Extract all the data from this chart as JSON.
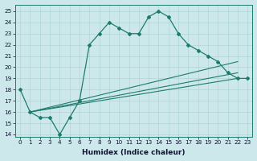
{
  "xlabel": "Humidex (Indice chaleur)",
  "bg_color": "#cce8ea",
  "line_color": "#1e7b6e",
  "grid_color": "#aed4d6",
  "xlim": [
    -0.5,
    23.5
  ],
  "ylim": [
    13.8,
    25.6
  ],
  "yticks": [
    14,
    15,
    16,
    17,
    18,
    19,
    20,
    21,
    22,
    23,
    24,
    25
  ],
  "xticks": [
    0,
    1,
    2,
    3,
    4,
    5,
    6,
    7,
    8,
    9,
    10,
    11,
    12,
    13,
    14,
    15,
    16,
    17,
    18,
    19,
    20,
    21,
    22,
    23
  ],
  "main_series_x": [
    0,
    1,
    2,
    3,
    4,
    5,
    6,
    7,
    8,
    9,
    10,
    11,
    12,
    13,
    14,
    15,
    16,
    17,
    18,
    19,
    20,
    21,
    22,
    23
  ],
  "main_series_y": [
    18,
    16,
    15.5,
    15.5,
    14,
    15.5,
    17,
    22,
    23,
    24,
    23.5,
    23,
    23,
    24.5,
    25,
    24.5,
    23,
    22,
    21.5,
    21,
    20.5,
    19.5,
    19,
    19
  ],
  "fan_lines": [
    {
      "x": [
        1,
        22
      ],
      "y": [
        16,
        19.0
      ]
    },
    {
      "x": [
        1,
        22
      ],
      "y": [
        16,
        19.5
      ]
    },
    {
      "x": [
        1,
        22
      ],
      "y": [
        16,
        20.5
      ]
    }
  ]
}
